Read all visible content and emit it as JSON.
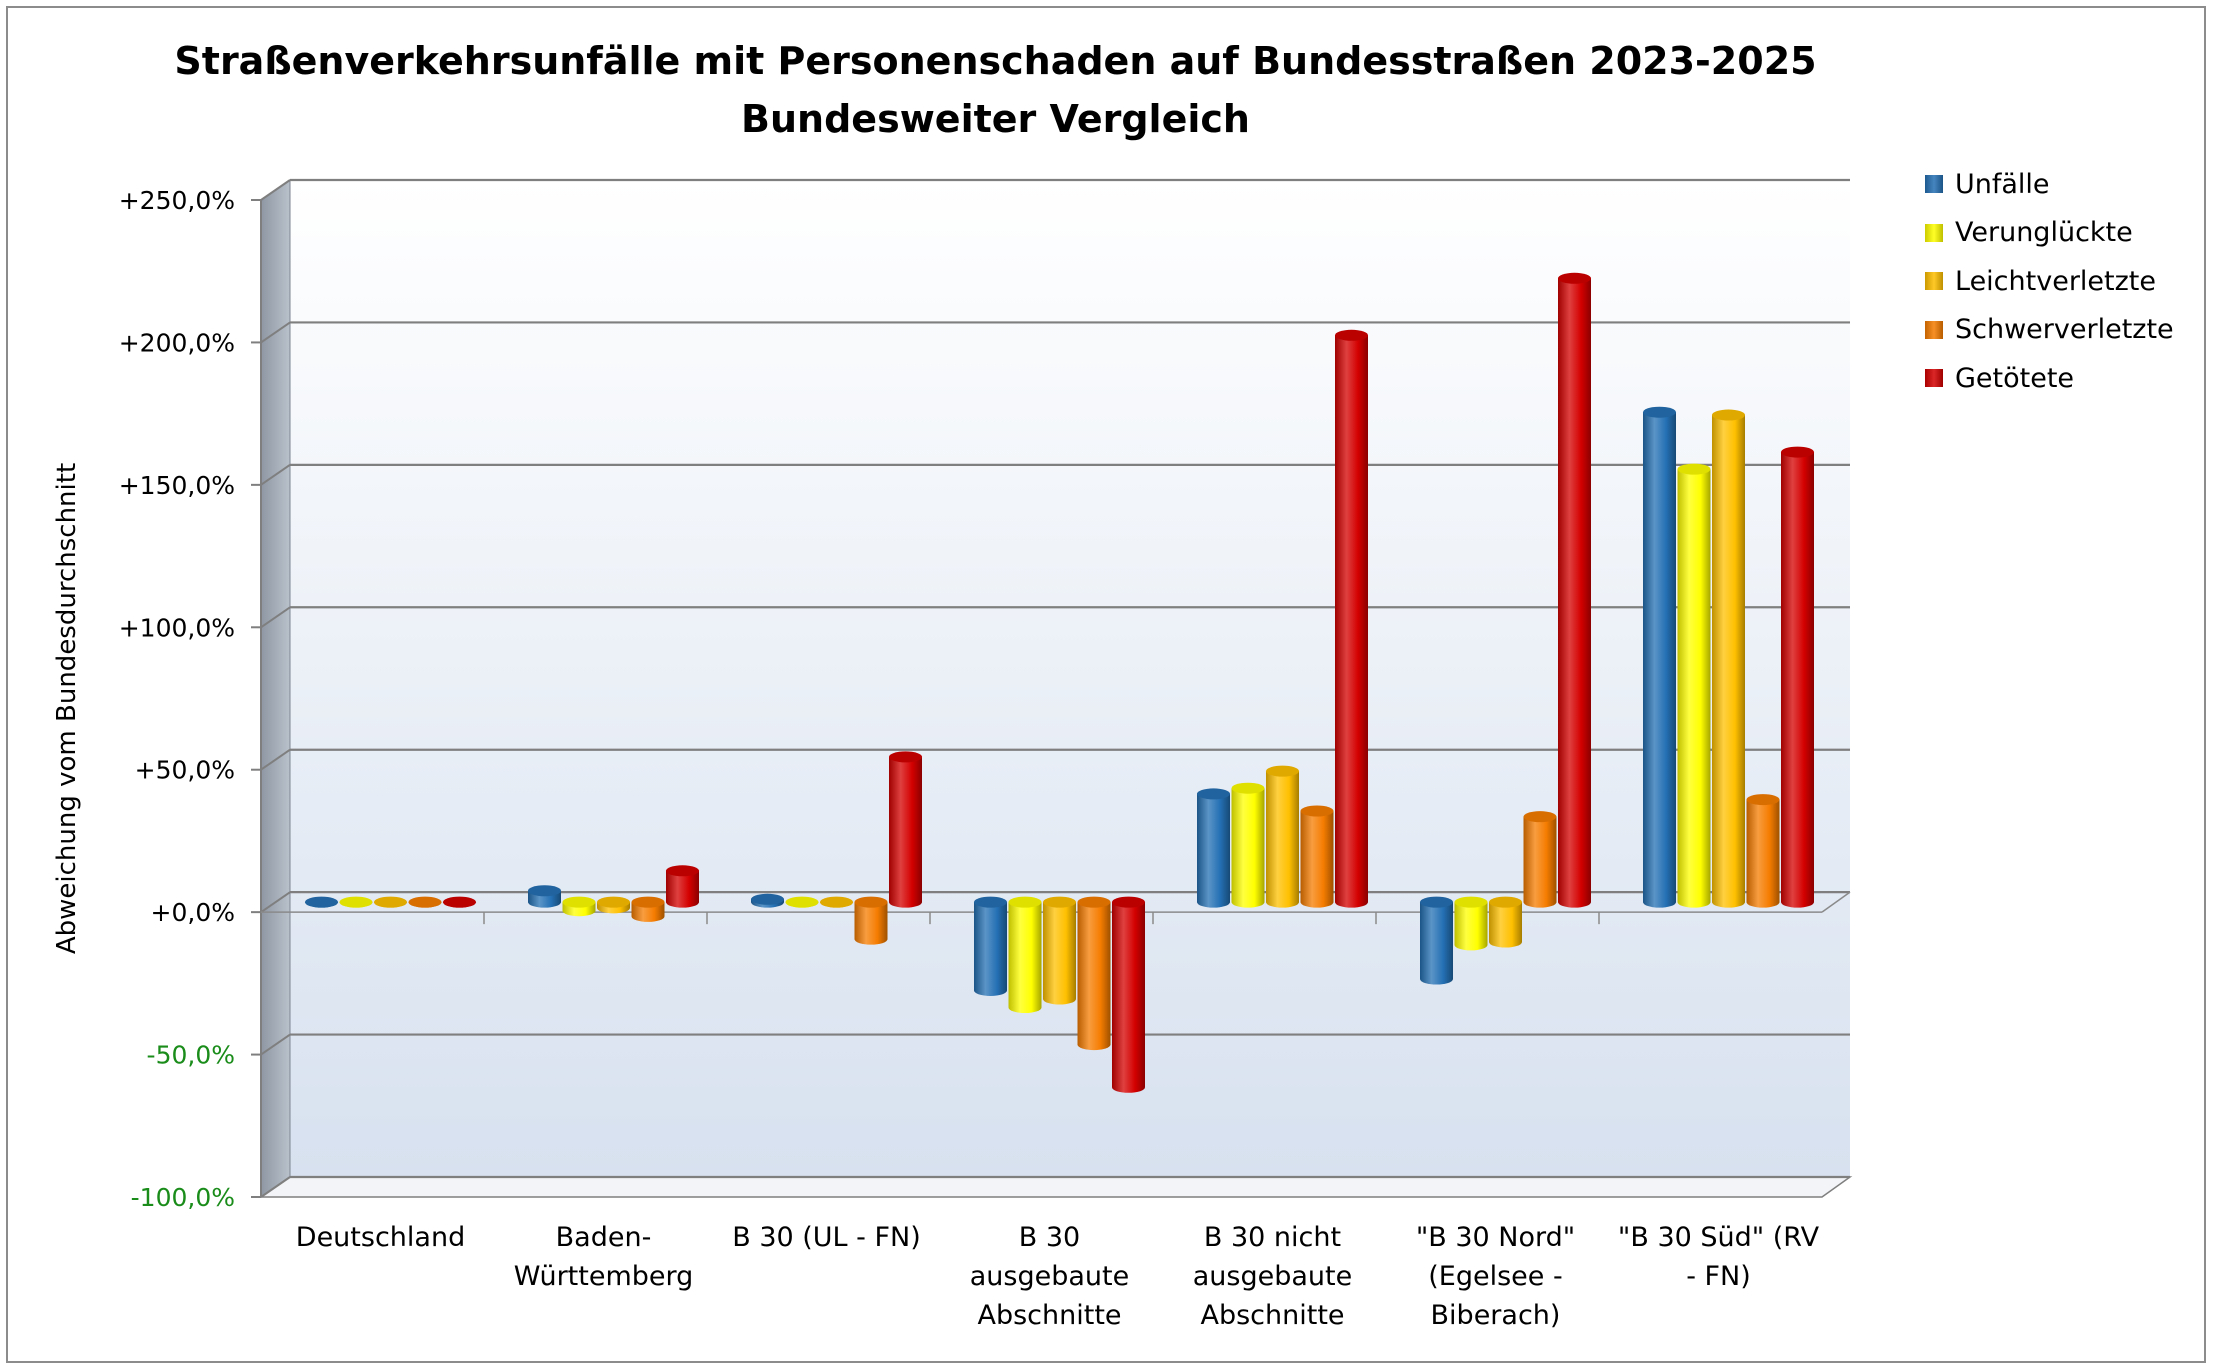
{
  "chart_data": {
    "type": "bar",
    "title": "Straßenverkehrsunfälle mit Personenschaden auf Bundesstraßen 2023-2025",
    "subtitle": "Bundesweiter Vergleich",
    "ylabel": "Abweichung vom Bundesdurchschnitt",
    "xlabel": "",
    "ylim": [
      -100,
      250
    ],
    "yticks": [
      -100,
      -50,
      0,
      50,
      100,
      150,
      200,
      250
    ],
    "ytick_labels": [
      "-100,0%",
      "-50,0%",
      "+0,0%",
      "+50,0%",
      "+100,0%",
      "+150,0%",
      "+200,0%",
      "+250,0%"
    ],
    "categories": [
      [
        "Deutschland"
      ],
      [
        "Baden-",
        "Württemberg"
      ],
      [
        "B 30 (UL - FN)"
      ],
      [
        "B 30",
        "ausgebaute",
        "Abschnitte"
      ],
      [
        "B 30 nicht",
        "ausgebaute",
        "Abschnitte"
      ],
      [
        "\"B 30 Nord\"",
        "(Egelsee -",
        "Biberach)"
      ],
      [
        "\"B 30 Süd\" (RV",
        "- FN)"
      ]
    ],
    "legend_position": "right",
    "grid": true,
    "series": [
      {
        "name": "Unfälle",
        "color": "#2470b4",
        "values": [
          0,
          4,
          1,
          -31,
          38,
          -27,
          172
        ]
      },
      {
        "name": "Verunglückte",
        "color": "#ffff00",
        "values": [
          0,
          -3,
          0,
          -37,
          40,
          -15,
          152
        ]
      },
      {
        "name": "Leichtverletzte",
        "color": "#ffc000",
        "values": [
          0,
          -2,
          0,
          -34,
          46,
          -14,
          171
        ]
      },
      {
        "name": "Schwerverletzte",
        "color": "#f57c00",
        "values": [
          0,
          -5,
          -13,
          -50,
          32,
          30,
          36
        ]
      },
      {
        "name": "Getötete",
        "color": "#d40000",
        "values": [
          0,
          11,
          51,
          -65,
          199,
          219,
          158
        ]
      }
    ],
    "negative_tick_color": "#1a8c1a"
  }
}
